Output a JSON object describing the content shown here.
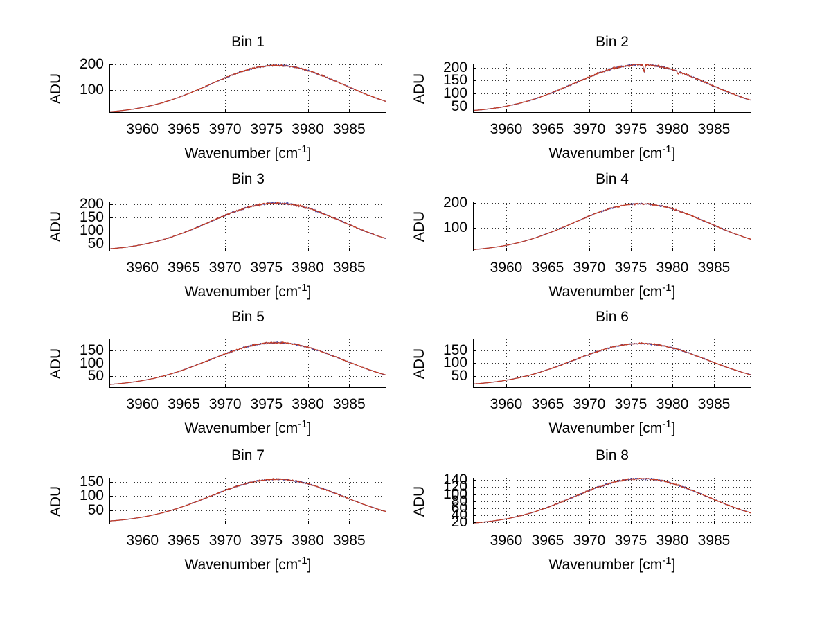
{
  "figure": {
    "background": "#ffffff",
    "ylabel": "ADU",
    "xlabel_pre": "Wavenumber [cm",
    "xlabel_sup": "-1",
    "xlabel_post": "]",
    "axis_color": "#000000",
    "grid_color": "#333333",
    "grid_style": "dotted",
    "line_color_primary": "#c43b22",
    "line_color_secondary": "#3b3b9e"
  },
  "chart_data": [
    {
      "type": "line",
      "title": "Bin 1",
      "xlim": [
        3956,
        3989.5
      ],
      "ylim": [
        10,
        200
      ],
      "x_ticks": [
        3960,
        3965,
        3970,
        3975,
        3980,
        3985
      ],
      "y_ticks": [
        100,
        200
      ],
      "xlabel": "Wavenumber [cm^-1]",
      "ylabel": "ADU",
      "grid": true,
      "legend": "none",
      "series": [
        {
          "name": "trace-blue"
        },
        {
          "name": "trace-red"
        }
      ],
      "profile": {
        "center": 3976.2,
        "sigma": 11.4,
        "base": 6,
        "amp": 190
      },
      "readings": {
        "start_adu": 14,
        "peak_adu": 196,
        "peak_x": 3976,
        "end_adu": 55
      },
      "noise_frac": 0.02
    },
    {
      "type": "line",
      "title": "Bin 2",
      "xlim": [
        3956,
        3989.5
      ],
      "ylim": [
        25,
        213
      ],
      "x_ticks": [
        3960,
        3965,
        3970,
        3975,
        3980,
        3985
      ],
      "y_ticks": [
        50,
        100,
        150,
        200
      ],
      "xlabel": "Wavenumber [cm^-1]",
      "ylabel": "ADU",
      "grid": true,
      "legend": "none",
      "series": [
        {
          "name": "trace-blue"
        },
        {
          "name": "trace-red"
        }
      ],
      "profile": {
        "center": 3976.2,
        "sigma": 11.4,
        "base": 26,
        "amp": 186
      },
      "spikes": [
        {
          "x": 3976.6,
          "depth": 27,
          "width": 0.12
        },
        {
          "x": 3980.7,
          "depth": 9,
          "width": 0.12
        }
      ],
      "readings": {
        "start_adu": 34,
        "peak_adu": 211,
        "peak_x": 3976,
        "end_adu": 73
      },
      "noise_frac": 0.022
    },
    {
      "type": "line",
      "title": "Bin 3",
      "xlim": [
        3956,
        3989.5
      ],
      "ylim": [
        20,
        210
      ],
      "x_ticks": [
        3960,
        3965,
        3970,
        3975,
        3980,
        3985
      ],
      "y_ticks": [
        50,
        100,
        150,
        200
      ],
      "xlabel": "Wavenumber [cm^-1]",
      "ylabel": "ADU",
      "grid": true,
      "legend": "none",
      "series": [
        {
          "name": "trace-blue"
        },
        {
          "name": "trace-red"
        }
      ],
      "profile": {
        "center": 3976.2,
        "sigma": 11.4,
        "base": 22,
        "amp": 182
      },
      "readings": {
        "start_adu": 30,
        "peak_adu": 204,
        "peak_x": 3976,
        "end_adu": 69
      },
      "noise_frac": 0.02
    },
    {
      "type": "line",
      "title": "Bin 4",
      "xlim": [
        3956,
        3989.5
      ],
      "ylim": [
        5,
        205
      ],
      "x_ticks": [
        3960,
        3965,
        3970,
        3975,
        3980,
        3985
      ],
      "y_ticks": [
        100,
        200
      ],
      "xlabel": "Wavenumber [cm^-1]",
      "ylabel": "ADU",
      "grid": true,
      "legend": "none",
      "series": [
        {
          "name": "trace-blue"
        },
        {
          "name": "trace-red"
        }
      ],
      "profile": {
        "center": 3976.2,
        "sigma": 11.4,
        "base": 4,
        "amp": 192
      },
      "readings": {
        "start_adu": 12,
        "peak_adu": 196,
        "peak_x": 3976,
        "end_adu": 53
      },
      "noise_frac": 0.02
    },
    {
      "type": "line",
      "title": "Bin 5",
      "xlim": [
        3956,
        3989.5
      ],
      "ylim": [
        4,
        195
      ],
      "x_ticks": [
        3960,
        3965,
        3970,
        3975,
        3980,
        3985
      ],
      "y_ticks": [
        50,
        100,
        150
      ],
      "xlabel": "Wavenumber [cm^-1]",
      "ylabel": "ADU",
      "grid": true,
      "legend": "none",
      "series": [
        {
          "name": "trace-blue"
        },
        {
          "name": "trace-red"
        }
      ],
      "profile": {
        "center": 3976.2,
        "sigma": 11.4,
        "base": 10,
        "amp": 172
      },
      "readings": {
        "start_adu": 17,
        "peak_adu": 182,
        "peak_x": 3976,
        "end_adu": 54
      },
      "noise_frac": 0.02
    },
    {
      "type": "line",
      "title": "Bin 6",
      "xlim": [
        3956,
        3989.5
      ],
      "ylim": [
        4,
        193
      ],
      "x_ticks": [
        3960,
        3965,
        3970,
        3975,
        3980,
        3985
      ],
      "y_ticks": [
        50,
        100,
        150
      ],
      "xlabel": "Wavenumber [cm^-1]",
      "ylabel": "ADU",
      "grid": true,
      "legend": "none",
      "series": [
        {
          "name": "trace-blue"
        },
        {
          "name": "trace-red"
        }
      ],
      "profile": {
        "center": 3976.2,
        "sigma": 11.4,
        "base": 12,
        "amp": 165
      },
      "readings": {
        "start_adu": 19,
        "peak_adu": 177,
        "peak_x": 3976,
        "end_adu": 54
      },
      "noise_frac": 0.02
    },
    {
      "type": "line",
      "title": "Bin 7",
      "xlim": [
        3956,
        3989.5
      ],
      "ylim": [
        0,
        165
      ],
      "x_ticks": [
        3960,
        3965,
        3970,
        3975,
        3980,
        3985
      ],
      "y_ticks": [
        50,
        100,
        150
      ],
      "xlabel": "Wavenumber [cm^-1]",
      "ylabel": "ADU",
      "grid": true,
      "legend": "none",
      "series": [
        {
          "name": "trace-blue"
        },
        {
          "name": "trace-red"
        }
      ],
      "profile": {
        "center": 3976.2,
        "sigma": 11.4,
        "base": 5,
        "amp": 155
      },
      "readings": {
        "start_adu": 12,
        "peak_adu": 160,
        "peak_x": 3976,
        "end_adu": 45
      },
      "noise_frac": 0.02
    },
    {
      "type": "line",
      "title": "Bin 8",
      "xlim": [
        3956,
        3989.5
      ],
      "ylim": [
        15,
        146
      ],
      "x_ticks": [
        3960,
        3965,
        3970,
        3975,
        3980,
        3985
      ],
      "y_ticks": [
        20,
        40,
        60,
        80,
        100,
        120,
        140
      ],
      "xlabel": "Wavenumber [cm^-1]",
      "ylabel": "ADU",
      "grid": true,
      "legend": "none",
      "series": [
        {
          "name": "trace-blue"
        },
        {
          "name": "trace-red"
        }
      ],
      "profile": {
        "center": 3976.2,
        "sigma": 11.4,
        "base": 13,
        "amp": 131
      },
      "readings": {
        "start_adu": 19,
        "peak_adu": 144,
        "peak_x": 3976,
        "end_adu": 47
      },
      "noise_frac": 0.02
    }
  ]
}
